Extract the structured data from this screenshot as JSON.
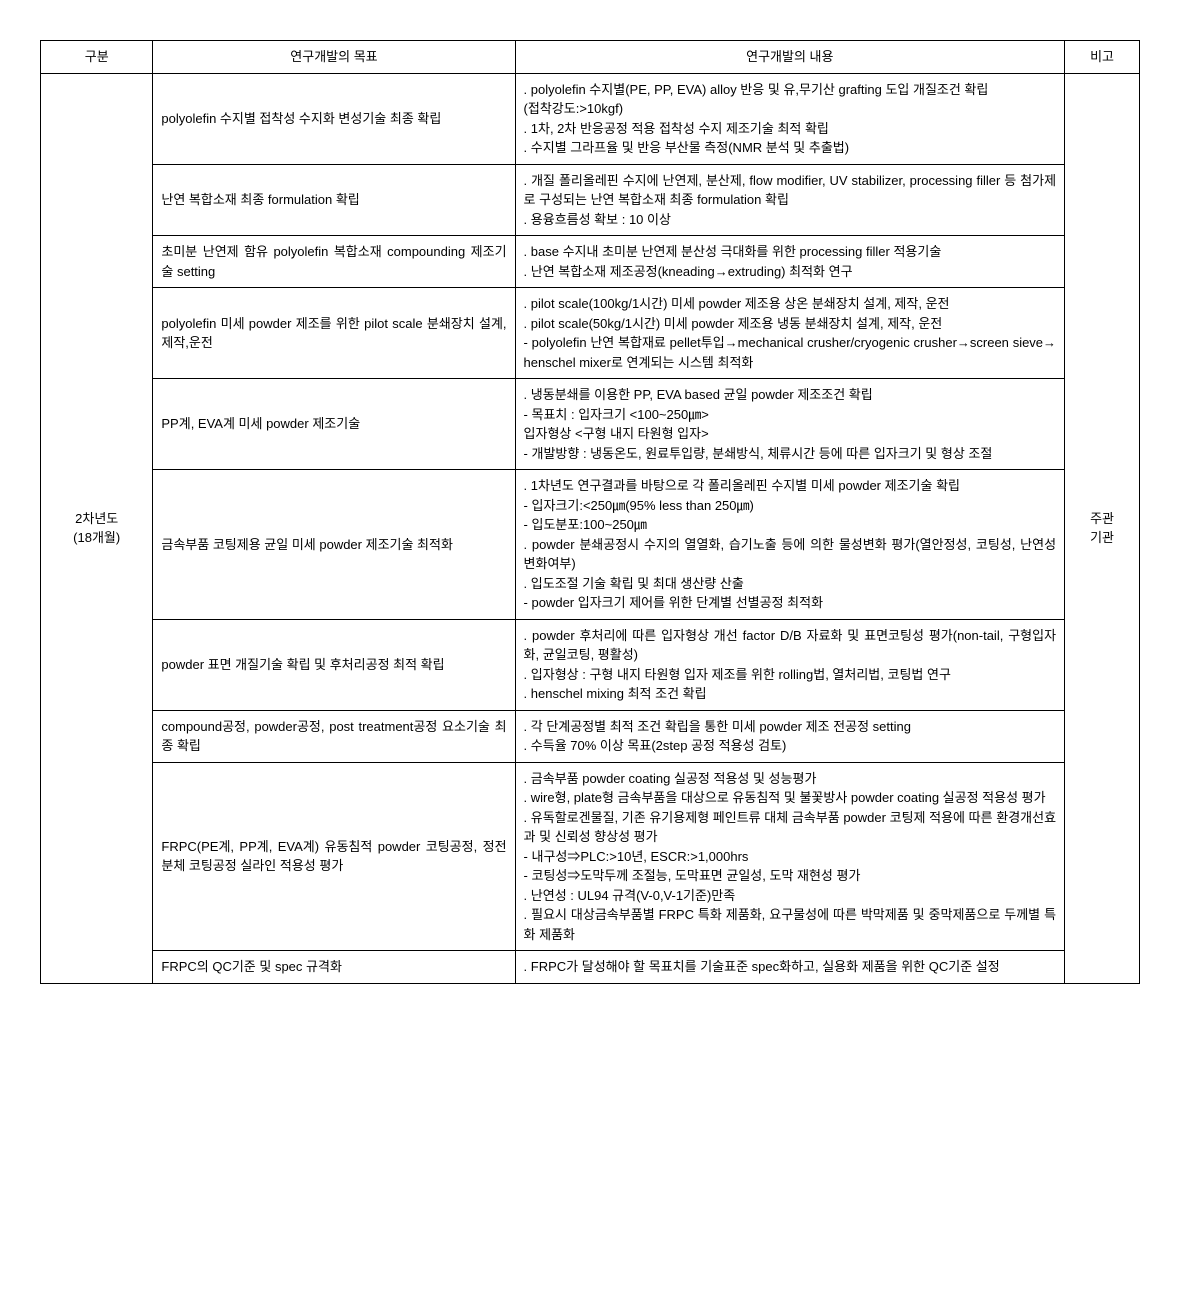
{
  "headers": {
    "division": "구분",
    "goal": "연구개발의 목표",
    "content": "연구개발의 내용",
    "note": "비고"
  },
  "divisionLabel": "2차년도\n(18개월)",
  "noteLabel": "주관\n기관",
  "rows": [
    {
      "goal": "polyolefin 수지별 접착성 수지화 변성기술 최종 확립",
      "content": ". polyolefin 수지별(PE, PP, EVA) alloy 반응 및 유,무기산 grafting 도입 개질조건 확립\n (접착강도:>10kgf)\n. 1차, 2차 반응공정 적용 접착성 수지 제조기술 최적 확립\n. 수지별 그라프율 및 반응 부산물 측정(NMR 분석 및 추출법)"
    },
    {
      "goal": "난연 복합소재 최종 formulation 확립",
      "content": ". 개질 폴리올레핀 수지에 난연제, 분산제, flow modifier, UV stabilizer, processing filler 등 첨가제로 구성되는 난연 복합소재 최종 formulation 확립\n. 용융흐름성 확보 : 10 이상"
    },
    {
      "goal": "초미분 난연제 함유 polyolefin 복합소재 compounding 제조기술 setting",
      "content": ". base 수지내 초미분 난연제 분산성 극대화를 위한 processing filler 적용기술\n. 난연 복합소재 제조공정(kneading→extruding) 최적화 연구"
    },
    {
      "goal": "polyolefin 미세 powder 제조를 위한 pilot scale 분쇄장치 설계,제작,운전",
      "content": ". pilot scale(100kg/1시간) 미세 powder 제조용 상온 분쇄장치 설계, 제작, 운전\n. pilot scale(50kg/1시간) 미세 powder 제조용 냉동 분쇄장치 설계, 제작, 운전\n - polyolefin 난연 복합재료 pellet투입→mechanical crusher/cryogenic crusher→screen sieve→henschel mixer로 연계되는 시스템 최적화"
    },
    {
      "goal": "PP계, EVA계 미세 powder 제조기술",
      "content": ". 냉동분쇄를 이용한 PP, EVA based 균일 powder 제조조건 확립\n - 목표치 : 입자크기 <100~250㎛>\n            입자형상 <구형 내지 타원형 입자>\n - 개발방향 : 냉동온도, 원료투입량, 분쇄방식, 체류시간 등에 따른 입자크기 및 형상 조절"
    },
    {
      "goal": "금속부품 코팅제용 균일 미세 powder 제조기술 최적화",
      "content": ". 1차년도 연구결과를 바탕으로 각 폴리올레핀 수지별 미세 powder 제조기술 확립\n - 입자크기:<250㎛(95% less than 250㎛)\n - 입도분포:100~250㎛\n. powder 분쇄공정시 수지의 열열화, 습기노출 등에 의한 물성변화 평가(열안정성, 코팅성, 난연성 변화여부)\n. 입도조절 기술 확립 및 최대 생산량 산출\n - powder 입자크기 제어를 위한 단계별 선별공정 최적화"
    },
    {
      "goal": "powder 표면 개질기술 확립 및 후처리공정 최적 확립",
      "content": ". powder 후처리에 따른 입자형상 개선 factor D/B 자료화 및 표면코팅성 평가(non-tail, 구형입자화, 균일코팅, 평활성)\n. 입자형상 : 구형 내지 타원형 입자 제조를 위한 rolling법, 열처리법, 코팅법 연구\n. henschel mixing 최적 조건 확립"
    },
    {
      "goal": "compound공정, powder공정, post treatment공정 요소기술 최종 확립",
      "content": ". 각 단계공정별 최적 조건 확립을 통한 미세 powder 제조 전공정 setting\n. 수득율 70% 이상 목표(2step 공정 적용성 검토)"
    },
    {
      "goal": "FRPC(PE계, PP계, EVA계) 유동침적 powder 코팅공정, 정전분체 코팅공정 실라인 적용성 평가",
      "content": ". 금속부품 powder coating 실공정 적용성 및 성능평가\n. wire형, plate형 금속부품을 대상으로 유동침적 및 불꽃방사 powder coating 실공정 적용성 평가\n. 유독할로겐물질, 기존 유기용제형 페인트류 대체 금속부품 powder 코팅제 적용에 따른 환경개선효과 및 신뢰성 향상성 평가\n - 내구성⇒PLC:>10년, ESCR:>1,000hrs\n - 코팅성⇒도막두께 조절능, 도막표면 균일성, 도막 재현성 평가\n. 난연성 : UL94 규격(V-0,V-1기준)만족\n. 필요시 대상금속부품별 FRPC 특화 제품화, 요구물성에 따른 박막제품 및 중막제품으로 두께별 특화 제품화"
    },
    {
      "goal": "FRPC의 QC기준 및 spec 규격화",
      "content": ". FRPC가 달성해야 할 목표치를 기술표준 spec화하고, 실용화 제품을 위한 QC기준 설정"
    }
  ]
}
